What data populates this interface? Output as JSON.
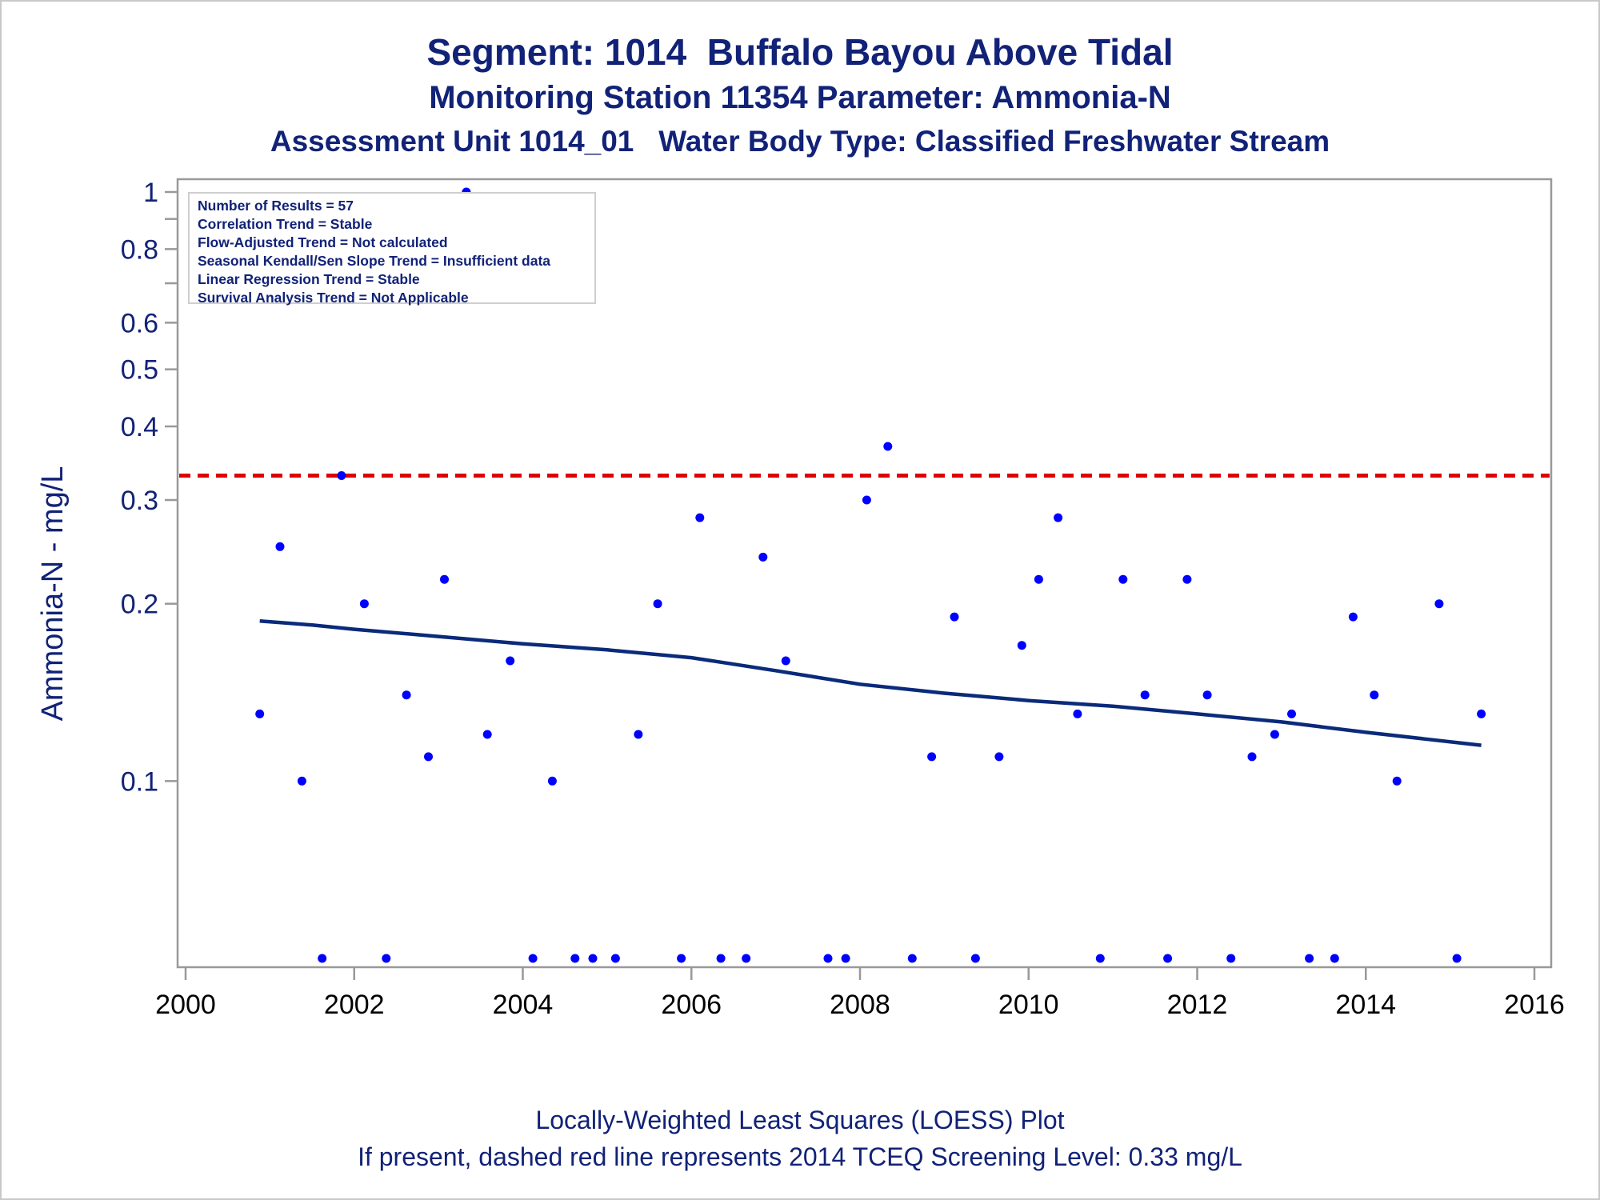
{
  "titles": {
    "line1": "Segment: 1014  Buffalo Bayou Above Tidal",
    "line2": "Monitoring Station 11354 Parameter: Ammonia-N",
    "line3": "Assessment Unit 1014_01   Water Body Type: Classified Freshwater Stream"
  },
  "stats": [
    "Number of Results = 57",
    "Correlation Trend = Stable",
    "Flow-Adjusted Trend = Not calculated",
    "Seasonal Kendall/Sen Slope Trend = Insufficient data",
    "Linear Regression Trend = Stable",
    "Survival Analysis Trend = Not Applicable"
  ],
  "footnotes": {
    "line1": "Locally-Weighted Least Squares (LOESS) Plot",
    "line2": "If present, dashed red line represents 2014 TCEQ Screening Level: 0.33 mg/L"
  },
  "colors": {
    "text": "#112277",
    "points": "#0000ff",
    "loess": "#0a2a7a",
    "screening": "#dd0000",
    "axis": "#999999"
  },
  "chart_data": {
    "type": "scatter",
    "ylabel": "Ammonia-N - mg/L",
    "xlabel": "",
    "y_scale": "log",
    "xlim": [
      2000,
      2016
    ],
    "ylim": [
      0.05,
      1.0
    ],
    "x_ticks": [
      2000,
      2002,
      2004,
      2006,
      2008,
      2010,
      2012,
      2014,
      2016
    ],
    "x_tick_labels": [
      "2000",
      "2002",
      "2004",
      "2006",
      "2008",
      "2010",
      "2012",
      "2014",
      "2016"
    ],
    "y_ticks": [
      0.1,
      0.2,
      0.3,
      0.4,
      0.5,
      0.6,
      0.8,
      1
    ],
    "y_tick_labels": [
      "0.1",
      "0.2",
      "0.3",
      "0.4",
      "0.5",
      "0.6",
      "0.8",
      "1"
    ],
    "y_minor_ticks": [
      0.7,
      0.9
    ],
    "screening_level": 0.33,
    "points": [
      [
        2000.88,
        0.13
      ],
      [
        2001.12,
        0.25
      ],
      [
        2001.38,
        0.1
      ],
      [
        2001.62,
        0.05
      ],
      [
        2001.85,
        0.33
      ],
      [
        2002.12,
        0.2
      ],
      [
        2002.38,
        0.05
      ],
      [
        2002.62,
        0.14
      ],
      [
        2002.88,
        0.11
      ],
      [
        2003.07,
        0.22
      ],
      [
        2003.33,
        1.0
      ],
      [
        2003.58,
        0.12
      ],
      [
        2003.85,
        0.16
      ],
      [
        2004.12,
        0.05
      ],
      [
        2004.35,
        0.1
      ],
      [
        2004.62,
        0.05
      ],
      [
        2004.83,
        0.05
      ],
      [
        2005.1,
        0.05
      ],
      [
        2005.37,
        0.12
      ],
      [
        2005.6,
        0.2
      ],
      [
        2005.88,
        0.05
      ],
      [
        2006.1,
        0.28
      ],
      [
        2006.35,
        0.05
      ],
      [
        2006.65,
        0.05
      ],
      [
        2006.85,
        0.24
      ],
      [
        2007.12,
        0.16
      ],
      [
        2007.62,
        0.05
      ],
      [
        2007.83,
        0.05
      ],
      [
        2008.08,
        0.3
      ],
      [
        2008.33,
        0.37
      ],
      [
        2008.62,
        0.05
      ],
      [
        2008.85,
        0.11
      ],
      [
        2009.12,
        0.19
      ],
      [
        2009.37,
        0.05
      ],
      [
        2009.65,
        0.11
      ],
      [
        2009.92,
        0.17
      ],
      [
        2010.12,
        0.22
      ],
      [
        2010.35,
        0.28
      ],
      [
        2010.58,
        0.13
      ],
      [
        2010.85,
        0.05
      ],
      [
        2011.12,
        0.22
      ],
      [
        2011.38,
        0.14
      ],
      [
        2011.65,
        0.05
      ],
      [
        2011.88,
        0.22
      ],
      [
        2012.12,
        0.14
      ],
      [
        2012.4,
        0.05
      ],
      [
        2012.65,
        0.11
      ],
      [
        2012.92,
        0.12
      ],
      [
        2013.12,
        0.13
      ],
      [
        2013.33,
        0.05
      ],
      [
        2013.63,
        0.05
      ],
      [
        2013.85,
        0.19
      ],
      [
        2014.1,
        0.14
      ],
      [
        2014.37,
        0.1
      ],
      [
        2014.87,
        0.2
      ],
      [
        2015.08,
        0.05
      ],
      [
        2015.37,
        0.13
      ]
    ],
    "loess": [
      [
        2000.88,
        0.187
      ],
      [
        2001.5,
        0.184
      ],
      [
        2002.0,
        0.181
      ],
      [
        2003.0,
        0.176
      ],
      [
        2004.0,
        0.171
      ],
      [
        2005.0,
        0.167
      ],
      [
        2006.0,
        0.162
      ],
      [
        2007.0,
        0.154
      ],
      [
        2008.0,
        0.146
      ],
      [
        2009.0,
        0.141
      ],
      [
        2010.0,
        0.137
      ],
      [
        2011.0,
        0.134
      ],
      [
        2012.0,
        0.13
      ],
      [
        2013.0,
        0.126
      ],
      [
        2014.0,
        0.121
      ],
      [
        2015.37,
        0.115
      ]
    ]
  }
}
